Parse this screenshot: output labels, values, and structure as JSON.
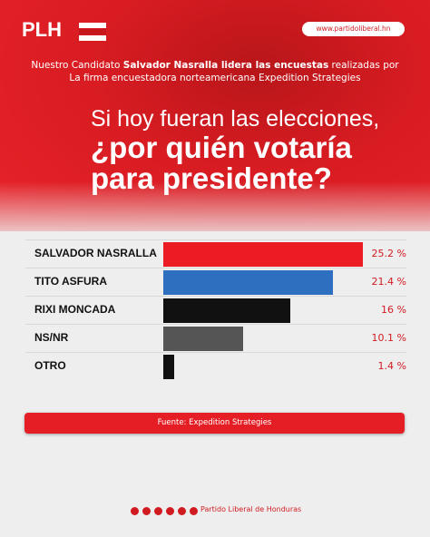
{
  "header": {
    "logo": "PLH",
    "url": "www.partidoliberal.hn",
    "intro": [
      "Nuestro Candidato ",
      "Salvador Nasralla lidera las encuestas",
      " realizadas por La firma encuestadora norteamericana Expedition Strategies"
    ],
    "headline": [
      "Si hoy fueran las elecciones,",
      "¿por quién votaría",
      "para presidente?"
    ]
  },
  "chart_data": {
    "type": "bar",
    "orientation": "horizontal",
    "categories": [
      "SALVADOR NASRALLA",
      "TITO ASFURA",
      "RIXI MONCADA",
      "NS/NR",
      "OTRO"
    ],
    "values": [
      25.2,
      21.4,
      16,
      10.1,
      1.4
    ],
    "value_labels": [
      "25.2 %",
      "21.4 %",
      "16 %",
      "10.1 %",
      "1.4 %"
    ],
    "colors": [
      "#ec1c24",
      "#2e6fc0",
      "#111111",
      "#555555",
      "#111111"
    ]
  },
  "source": "Fuente: Expedition Strategies",
  "footer": "Partido Liberal de Honduras"
}
